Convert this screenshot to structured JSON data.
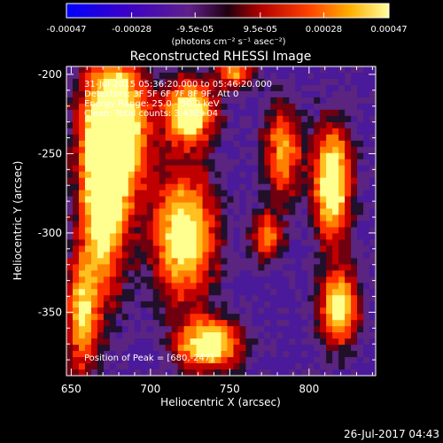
{
  "chart_data": {
    "type": "heatmap",
    "title": "Reconstructed RHESSI Image",
    "xlabel": "Heliocentric X (arcsec)",
    "ylabel": "Heliocentric Y (arcsec)",
    "xlim": [
      647,
      842
    ],
    "ylim": [
      -390,
      -195
    ],
    "xticks": [
      650,
      700,
      750,
      800
    ],
    "yticks": [
      -200,
      -250,
      -300,
      -350
    ],
    "colorbar": {
      "min": -0.00047,
      "max": 0.00047,
      "tick_labels": [
        "-0.00047",
        "-0.00028",
        "-9.5e-05",
        "9.5e-05",
        "0.00028",
        "0.00047"
      ],
      "unit_label": "(photons cm⁻² s⁻¹ asec⁻²)"
    },
    "annotations": {
      "time": "31-Jul-2015 05:36:20.000 to 05:46:20.000",
      "detectors": "Detectors: 3F 5F 6F 7F 8F 9F, Att 0",
      "energy": "Energy Range: 25.0 - 50.0 keV",
      "clean": "Clean: Total counts: 3.43E+04",
      "peak": "Position of Peak = [680,-247]"
    },
    "grid": false
  },
  "footer": {
    "timestamp": "26-Jul-2017 04:43"
  }
}
